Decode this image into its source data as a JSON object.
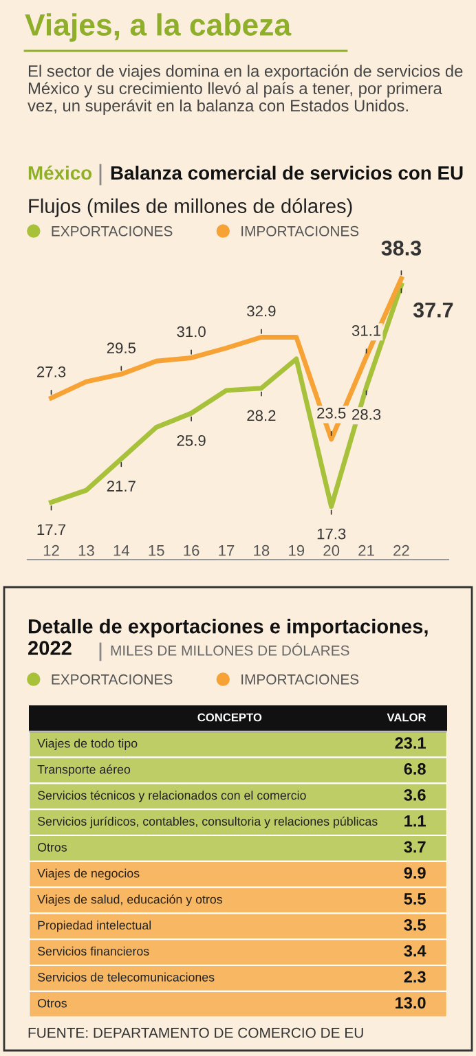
{
  "chart_data": [
    {
      "type": "line",
      "title": "Viajes, a la cabeza",
      "subtitle": "El sector de viajes domina en la exportación de servicios de México y su crecimiento llevó al país a tener, por primera vez, un superávit en la balanza con Estados Unidos.",
      "annotations": [
        "México",
        "Balanza comercial de servicios con EU",
        "Flujos (miles de millones de dólares)"
      ],
      "categories": [
        "12",
        "13",
        "14",
        "15",
        "16",
        "17",
        "18",
        "19",
        "20",
        "21",
        "22"
      ],
      "series": [
        {
          "name": "EXPORTACIONES",
          "color": "#a8c13a",
          "values": [
            17.7,
            18.8,
            21.7,
            24.6,
            25.9,
            28.0,
            28.2,
            30.9,
            17.3,
            28.3,
            37.7
          ],
          "value_labels": [
            "17.7",
            null,
            "21.7",
            null,
            "25.9",
            null,
            "28.2",
            null,
            "17.3",
            "28.3",
            "37.7"
          ]
        },
        {
          "name": "IMPORTACIONES",
          "color": "#f6a235",
          "values": [
            27.3,
            28.8,
            29.5,
            30.7,
            31.0,
            31.9,
            32.9,
            32.9,
            23.5,
            31.1,
            38.3
          ],
          "value_labels": [
            "27.3",
            null,
            "29.5",
            null,
            "31.0",
            null,
            "32.9",
            null,
            "23.5",
            "31.1",
            "38.3"
          ]
        }
      ],
      "legend": "top left",
      "marker": "none",
      "line_style": "solid",
      "grid": false,
      "tick_labels": "x"
    },
    {
      "type": "other",
      "title": "Detalle de exportaciones e importaciones, 2022",
      "subtitle": "MILES DE MILLONES DE DÓLARES",
      "annotations": [
        "CONCEPTO",
        "VALOR",
        "FUENTE: DEPARTAMENTO DE COMERCIO DE EU"
      ],
      "categories": [
        "Viajes de todo tipo",
        "Transporte aéreo",
        "Servicios técnicos y relacionados con el comercio",
        "Servicios jurídicos, contables, consultoria y relaciones públicas",
        "Otros",
        "Viajes de negocios",
        "Viajes de salud, educación y otros",
        "Propiedad intelectual",
        "Servicios financieros",
        "Servicios de telecomunicaciones",
        "Otros"
      ],
      "series": [
        {
          "name": "EXPORTACIONES",
          "color": "#a8c13a",
          "values": [
            23.1,
            6.8,
            3.6,
            1.1,
            3.7,
            null,
            null,
            null,
            null,
            null,
            null
          ],
          "value_labels": [
            "23.1",
            "6.8",
            "3.6",
            "1.1",
            "3.7",
            null,
            null,
            null,
            null,
            null,
            null
          ]
        },
        {
          "name": "IMPORTACIONES",
          "color": "#f6a235",
          "values": [
            null,
            null,
            null,
            null,
            null,
            9.9,
            5.5,
            3.5,
            3.4,
            2.3,
            13.0
          ],
          "value_labels": [
            null,
            null,
            null,
            null,
            null,
            "9.9",
            "5.5",
            "3.5",
            "3.4",
            "2.3",
            "13.0"
          ]
        }
      ],
      "legend": "top left"
    }
  ]
}
